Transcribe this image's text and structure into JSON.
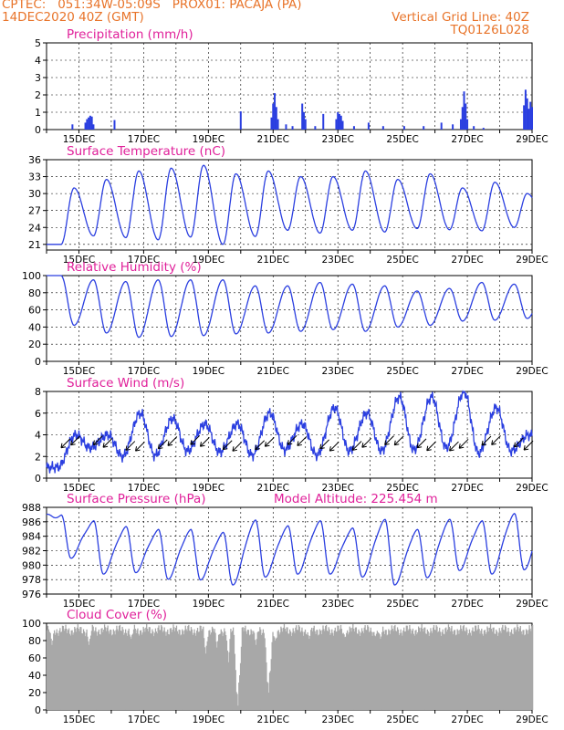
{
  "header": {
    "line1": "CPTEC:   051:34W-05:09S   PROX01: PACAJA (PA)",
    "line2": "14DEC2020 40Z (GMT)",
    "grid_note": "Vertical Grid Line: 40Z",
    "code": "TQ0126L028"
  },
  "colors": {
    "header": "#e8742a",
    "title": "#e0209a",
    "series": "#2b3fe0",
    "cloud": "#a8a8a8",
    "wind_arrow": "#000000"
  },
  "x_axis": {
    "days": [
      14,
      29
    ],
    "tick_labels": [
      {
        "day": 15,
        "label": "15DEC"
      },
      {
        "day": 17,
        "label": "17DEC"
      },
      {
        "day": 19,
        "label": "19DEC"
      },
      {
        "day": 21,
        "label": "21DEC"
      },
      {
        "day": 23,
        "label": "23DEC"
      },
      {
        "day": 25,
        "label": "25DEC"
      },
      {
        "day": 27,
        "label": "27DEC"
      },
      {
        "day": 29,
        "label": "29DEC"
      }
    ]
  },
  "chart_data": [
    {
      "type": "bar",
      "id": "precip",
      "title": "Precipitation (mm/h)",
      "ylim": [
        0,
        5
      ],
      "yticks": [
        0,
        1,
        2,
        3,
        4,
        5
      ],
      "points": [
        [
          14.8,
          0.3
        ],
        [
          15.2,
          0.4
        ],
        [
          15.25,
          0.6
        ],
        [
          15.3,
          0.7
        ],
        [
          15.35,
          0.8
        ],
        [
          15.4,
          0.75
        ],
        [
          15.45,
          0.3
        ],
        [
          16.1,
          0.55
        ],
        [
          20.0,
          1.05
        ],
        [
          20.95,
          0.7
        ],
        [
          21.0,
          1.5
        ],
        [
          21.05,
          2.1
        ],
        [
          21.1,
          1.3
        ],
        [
          21.15,
          0.6
        ],
        [
          21.4,
          0.3
        ],
        [
          21.6,
          0.2
        ],
        [
          21.9,
          1.5
        ],
        [
          21.95,
          1.0
        ],
        [
          22.0,
          0.6
        ],
        [
          22.3,
          0.2
        ],
        [
          22.55,
          0.9
        ],
        [
          22.95,
          0.6
        ],
        [
          23.0,
          1.0
        ],
        [
          23.05,
          0.9
        ],
        [
          23.1,
          0.8
        ],
        [
          23.15,
          0.5
        ],
        [
          23.5,
          0.2
        ],
        [
          23.95,
          0.4
        ],
        [
          24.4,
          0.2
        ],
        [
          25.05,
          0.2
        ],
        [
          25.65,
          0.2
        ],
        [
          26.2,
          0.4
        ],
        [
          26.55,
          0.3
        ],
        [
          26.8,
          0.6
        ],
        [
          26.85,
          1.3
        ],
        [
          26.9,
          2.2
        ],
        [
          26.95,
          1.5
        ],
        [
          27.0,
          0.6
        ],
        [
          27.2,
          0.2
        ],
        [
          27.5,
          0.1
        ],
        [
          28.75,
          1.4
        ],
        [
          28.8,
          2.3
        ],
        [
          28.85,
          1.8
        ],
        [
          28.9,
          1.2
        ],
        [
          28.95,
          1.6
        ],
        [
          29.0,
          1.3
        ]
      ]
    },
    {
      "type": "line",
      "id": "temp",
      "title": "Surface Temperature (nC)",
      "ylim": [
        20,
        36
      ],
      "yticks": [
        21,
        24,
        27,
        30,
        33,
        36
      ],
      "min": [
        21.0,
        22.5,
        22.2,
        21.8,
        22.3,
        21.0,
        22.4,
        23.5,
        23.0,
        23.5,
        23.2,
        23.8,
        23.6,
        23.4,
        24.0,
        25.0
      ],
      "max": [
        31.0,
        32.5,
        34.0,
        34.5,
        35.0,
        33.5,
        34.0,
        33.0,
        33.0,
        34.0,
        32.5,
        33.5,
        31.0,
        32.0,
        30.0
      ]
    },
    {
      "type": "line",
      "id": "rh",
      "title": "Relative Humidity (%)",
      "ylim": [
        0,
        100
      ],
      "yticks": [
        0,
        20,
        40,
        60,
        80,
        100
      ],
      "max": [
        100,
        95,
        93,
        95,
        95,
        95,
        88,
        88,
        92,
        90,
        88,
        82,
        85,
        92,
        90,
        90
      ],
      "min": [
        42,
        33,
        28,
        29,
        30,
        32,
        33,
        35,
        37,
        35,
        40,
        42,
        47,
        48,
        50
      ]
    },
    {
      "type": "line",
      "id": "wind",
      "title": "Surface Wind (m/s)",
      "ylim": [
        0,
        8
      ],
      "yticks": [
        0,
        2,
        4,
        6,
        8
      ],
      "min": [
        1.0,
        2.8,
        2.0,
        2.1,
        2.5,
        2.4,
        2.1,
        2.6,
        2.1,
        2.5,
        2.5,
        2.6,
        2.8,
        2.3,
        2.5,
        3.0
      ],
      "max": [
        4.0,
        4.0,
        6.0,
        5.5,
        5.0,
        5.0,
        6.0,
        5.0,
        6.5,
        6.0,
        7.5,
        7.5,
        8.0,
        6.5,
        4.0
      ],
      "arrow_days": [
        14.45,
        14.75,
        15.45,
        15.75,
        16.45,
        16.75,
        17.45,
        17.75,
        18.45,
        18.75,
        19.45,
        19.75,
        20.45,
        20.75,
        21.45,
        21.75,
        22.45,
        22.75,
        23.45,
        23.75,
        24.45,
        24.75,
        25.45,
        25.75,
        26.45,
        26.75,
        27.45,
        27.75,
        28.45,
        28.75
      ],
      "arrow_dir": "north-east"
    },
    {
      "type": "line",
      "id": "press",
      "title": "Surface Pressure (hPa)",
      "annotation": "Model Altitude: 225.454  m",
      "ylim": [
        976,
        988
      ],
      "yticks": [
        976,
        978,
        980,
        982,
        984,
        986,
        988
      ],
      "max": [
        986.8,
        986.0,
        985.2,
        984.8,
        984.8,
        984.4,
        986.1,
        985.3,
        986.0,
        985.0,
        986.2,
        984.8,
        986.2,
        986.0,
        987.0,
        987.1
      ],
      "min": [
        981.2,
        979.0,
        979.2,
        978.3,
        978.2,
        977.5,
        978.6,
        979.0,
        979.0,
        978.6,
        977.5,
        978.5,
        979.5,
        979.0,
        979.6
      ]
    },
    {
      "type": "bar",
      "id": "cloud",
      "title": "Cloud Cover (%)",
      "ylim": [
        0,
        100
      ],
      "yticks": [
        0,
        20,
        40,
        60,
        80,
        100
      ],
      "base": 92,
      "dips": [
        [
          14.15,
          75
        ],
        [
          15.3,
          75
        ],
        [
          16.6,
          82
        ],
        [
          18.9,
          65
        ],
        [
          19.25,
          72
        ],
        [
          19.6,
          55
        ],
        [
          19.85,
          30
        ],
        [
          19.9,
          5
        ],
        [
          19.95,
          40
        ],
        [
          20.45,
          75
        ],
        [
          20.8,
          40
        ],
        [
          20.85,
          20
        ],
        [
          20.9,
          45
        ],
        [
          21.05,
          80
        ],
        [
          22.1,
          82
        ],
        [
          23.2,
          84
        ],
        [
          24.15,
          85
        ],
        [
          24.3,
          82
        ]
      ]
    }
  ]
}
